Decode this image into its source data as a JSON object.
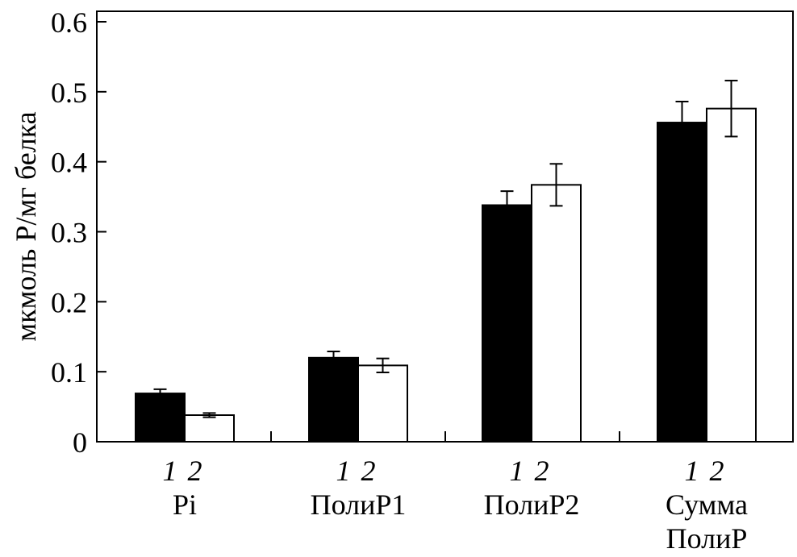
{
  "chart_data": {
    "type": "bar",
    "title": "",
    "xlabel": "",
    "ylabel": "мкмоль Р/мг белка",
    "ylim": [
      0,
      0.6
    ],
    "yticks": [
      "0",
      "0.1",
      "0.2",
      "0.3",
      "0.4",
      "0.5",
      "0.6"
    ],
    "grid": false,
    "categories": [
      {
        "lines": [
          "Pi"
        ]
      },
      {
        "lines": [
          "ПолиР1"
        ]
      },
      {
        "lines": [
          "ПолиР2"
        ]
      },
      {
        "lines": [
          "Сумма",
          "ПолиР"
        ]
      }
    ],
    "series": [
      {
        "name": "1",
        "color": "#000000",
        "values": [
          0.069,
          0.12,
          0.338,
          0.456
        ],
        "errors": [
          0.006,
          0.009,
          0.02,
          0.03
        ]
      },
      {
        "name": "2",
        "color": "#ffffff",
        "values": [
          0.038,
          0.109,
          0.367,
          0.476
        ],
        "errors": [
          0.003,
          0.01,
          0.03,
          0.04
        ]
      }
    ]
  }
}
